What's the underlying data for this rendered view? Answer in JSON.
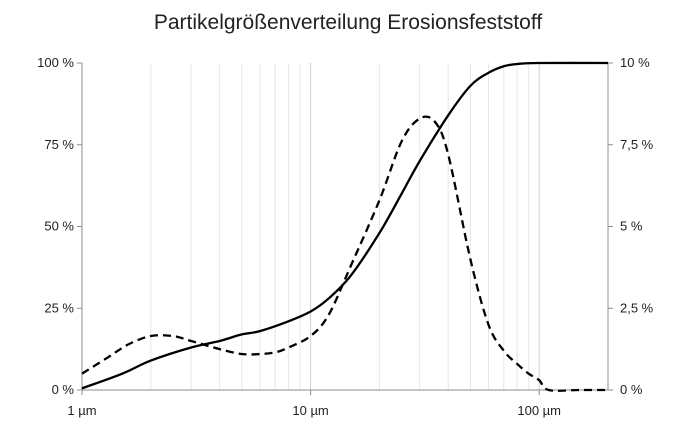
{
  "chart_data": {
    "type": "line",
    "title": "Partikelgrößenverteilung Erosionsfeststoff",
    "xscale": "log",
    "xlim": [
      1,
      200
    ],
    "x_ticks": [
      {
        "value": 1,
        "label": "1 µm"
      },
      {
        "value": 10,
        "label": "10 µm"
      },
      {
        "value": 100,
        "label": "100 µm"
      }
    ],
    "y_left": {
      "lim": [
        0,
        100
      ],
      "ticks": [
        {
          "value": 0,
          "label": "0 %"
        },
        {
          "value": 25,
          "label": "25 %"
        },
        {
          "value": 50,
          "label": "50 %"
        },
        {
          "value": 75,
          "label": "75 %"
        },
        {
          "value": 100,
          "label": "100 %"
        }
      ]
    },
    "y_right": {
      "lim": [
        0,
        10
      ],
      "ticks": [
        {
          "value": 0,
          "label": "0 %"
        },
        {
          "value": 2.5,
          "label": "2,5 %"
        },
        {
          "value": 5,
          "label": "5 %"
        },
        {
          "value": 7.5,
          "label": "7,5 %"
        },
        {
          "value": 10,
          "label": "10 %"
        }
      ]
    },
    "grid": "vertical log minor gridlines",
    "series": [
      {
        "style": "solid",
        "axis": "left",
        "points": [
          [
            1,
            0.5
          ],
          [
            1.5,
            5
          ],
          [
            2,
            9
          ],
          [
            3,
            13
          ],
          [
            4,
            15
          ],
          [
            5,
            17
          ],
          [
            6,
            18
          ],
          [
            8,
            21
          ],
          [
            10,
            24
          ],
          [
            12,
            28
          ],
          [
            15,
            35
          ],
          [
            20,
            48
          ],
          [
            25,
            60
          ],
          [
            30,
            70
          ],
          [
            40,
            84
          ],
          [
            50,
            93
          ],
          [
            60,
            97
          ],
          [
            70,
            99
          ],
          [
            80,
            99.7
          ],
          [
            100,
            100
          ],
          [
            200,
            100
          ]
        ]
      },
      {
        "style": "dashed",
        "axis": "right",
        "points": [
          [
            1,
            0.5
          ],
          [
            1.3,
            1.0
          ],
          [
            1.6,
            1.4
          ],
          [
            2,
            1.65
          ],
          [
            2.5,
            1.65
          ],
          [
            3,
            1.5
          ],
          [
            4,
            1.25
          ],
          [
            5,
            1.1
          ],
          [
            6,
            1.1
          ],
          [
            7,
            1.15
          ],
          [
            8,
            1.3
          ],
          [
            10,
            1.65
          ],
          [
            12,
            2.3
          ],
          [
            15,
            3.8
          ],
          [
            20,
            5.8
          ],
          [
            25,
            7.6
          ],
          [
            30,
            8.3
          ],
          [
            35,
            8.2
          ],
          [
            40,
            7.2
          ],
          [
            50,
            4.0
          ],
          [
            60,
            2.0
          ],
          [
            70,
            1.2
          ],
          [
            80,
            0.8
          ],
          [
            90,
            0.5
          ],
          [
            100,
            0.3
          ],
          [
            110,
            0
          ],
          [
            150,
            0
          ],
          [
            200,
            0
          ]
        ]
      }
    ]
  }
}
